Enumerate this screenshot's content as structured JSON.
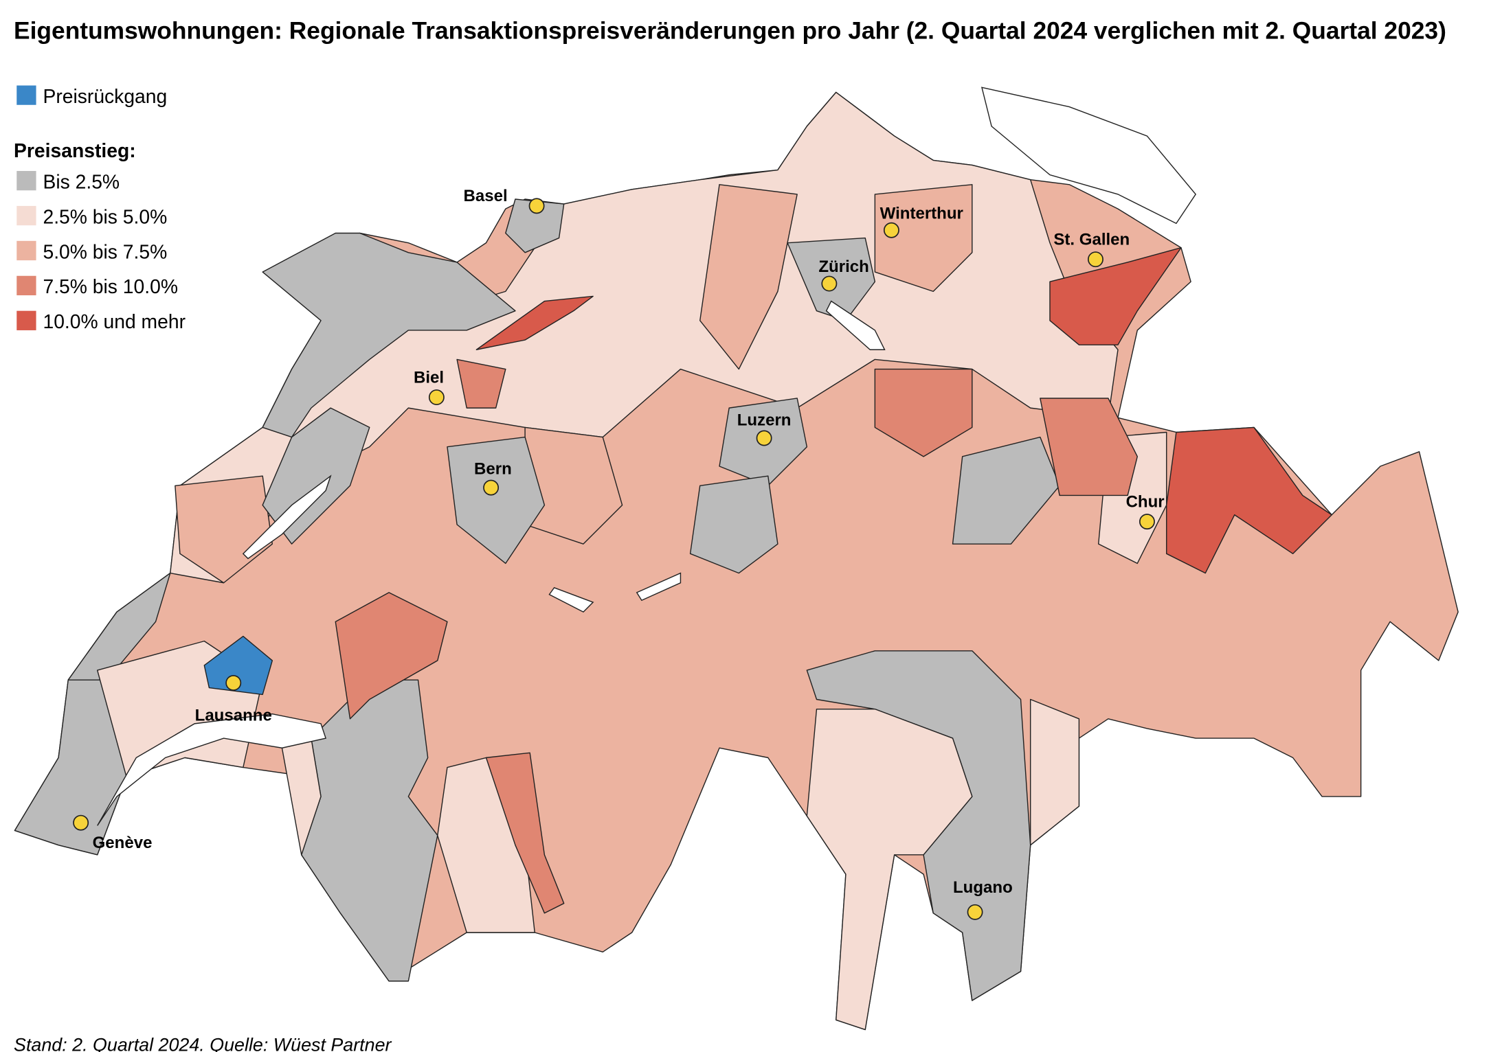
{
  "title": "Eigentumswohnungen: Regionale Transaktionspreisveränderungen pro Jahr (2. Quartal 2024 verglichen mit 2. Quartal 2023)",
  "legend": {
    "decline": {
      "label": "Preisrückgang",
      "color": "#3a87c8"
    },
    "increase_heading": "Preisanstieg:",
    "classes": [
      {
        "label": "Bis 2.5%",
        "color": "#bbbbbb"
      },
      {
        "label": "2.5% bis 5.0%",
        "color": "#f5dcd3"
      },
      {
        "label": "5.0% bis 7.5%",
        "color": "#ecb3a0"
      },
      {
        "label": "7.5% bis 10.0%",
        "color": "#e08672"
      },
      {
        "label": "10.0% und mehr",
        "color": "#d85a4b"
      }
    ]
  },
  "cities": [
    "Basel",
    "Winterthur",
    "St. Gallen",
    "Zürich",
    "Biel",
    "Luzern",
    "Bern",
    "Chur",
    "Lausanne",
    "Genève",
    "Lugano"
  ],
  "source": "Stand: 2. Quartal 2024. Quelle: Wüest Partner"
}
